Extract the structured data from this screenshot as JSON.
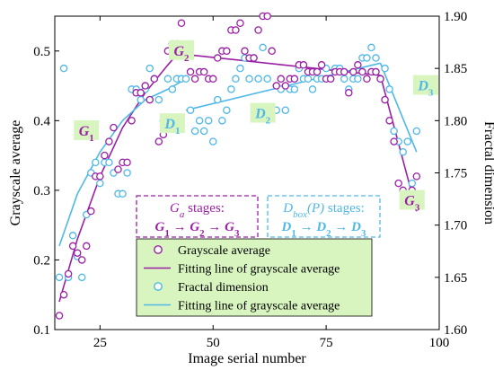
{
  "chart_data": {
    "type": "scatter",
    "xlabel": "Image serial number",
    "ylabel_left": "Grayscale average",
    "ylabel_right": "Fractal dimension",
    "xlim": [
      15,
      100
    ],
    "ylim_left": [
      0.1,
      0.55
    ],
    "ylim_right": [
      1.6,
      1.9
    ],
    "xticks": [
      "25",
      "50",
      "75",
      "100"
    ],
    "yticks_left": [
      "0.1",
      "0.2",
      "0.3",
      "0.4",
      "0.5"
    ],
    "yticks_right": [
      "1.60",
      "1.65",
      "1.70",
      "1.75",
      "1.80",
      "1.85",
      "1.90"
    ],
    "colors": {
      "grayscale": "#9b1fa5",
      "fractal": "#4fb8e8",
      "stage_bg": "#d8f5c0"
    },
    "legend": {
      "position": "bottom-center",
      "entries": [
        "Grayscale average",
        "Fitting line of grayscale average",
        "Fractal dimension",
        "Fitting line of grayscale average"
      ]
    },
    "grayscale_series": {
      "name": "Grayscale average",
      "x": [
        16,
        17,
        18,
        19,
        20,
        21,
        22,
        23,
        24,
        25,
        26,
        27,
        28,
        29,
        30,
        31,
        32,
        33,
        34,
        35,
        36,
        37,
        38,
        39,
        40,
        41,
        42,
        43,
        44,
        45,
        46,
        47,
        48,
        49,
        50,
        51,
        52,
        53,
        54,
        55,
        56,
        57,
        58,
        59,
        60,
        61,
        62,
        63,
        64,
        65,
        66,
        67,
        68,
        69,
        70,
        71,
        72,
        73,
        74,
        75,
        76,
        77,
        78,
        79,
        80,
        81,
        82,
        83,
        84,
        85,
        86,
        87,
        88,
        89,
        90,
        91,
        92,
        93,
        94,
        95
      ],
      "y": [
        0.12,
        0.15,
        0.18,
        0.22,
        0.21,
        0.2,
        0.22,
        0.27,
        0.32,
        0.32,
        0.35,
        0.37,
        0.39,
        0.33,
        0.34,
        0.34,
        0.4,
        0.44,
        0.44,
        0.45,
        0.43,
        0.46,
        0.37,
        0.38,
        0.5,
        0.51,
        0.51,
        0.54,
        0.5,
        0.47,
        0.46,
        0.47,
        0.47,
        0.46,
        0.46,
        0.49,
        0.5,
        0.5,
        0.53,
        0.53,
        0.54,
        0.5,
        0.49,
        0.49,
        0.53,
        0.55,
        0.55,
        0.5,
        0.45,
        0.46,
        0.45,
        0.46,
        0.46,
        0.48,
        0.48,
        0.47,
        0.47,
        0.47,
        0.48,
        0.46,
        0.46,
        0.47,
        0.47,
        0.47,
        0.44,
        0.47,
        0.48,
        0.47,
        0.46,
        0.47,
        0.47,
        0.46,
        0.43,
        0.4,
        0.37,
        0.31,
        0.3,
        0.28,
        0.3,
        0.32
      ]
    },
    "grayscale_fit": {
      "name": "Fitting line of grayscale average",
      "segments": [
        {
          "x": [
            16,
            20,
            25,
            30,
            35,
            40,
            44
          ],
          "y": [
            0.14,
            0.23,
            0.32,
            0.39,
            0.44,
            0.48,
            0.51
          ]
        },
        {
          "x": [
            44,
            87
          ],
          "y": [
            0.495,
            0.465
          ]
        },
        {
          "x": [
            87,
            95
          ],
          "y": [
            0.465,
            0.27
          ]
        }
      ]
    },
    "fractal_series": {
      "name": "Fractal dimension",
      "x": [
        16,
        17,
        18,
        19,
        20,
        21,
        22,
        23,
        24,
        25,
        26,
        27,
        28,
        29,
        30,
        31,
        32,
        33,
        34,
        35,
        36,
        37,
        38,
        39,
        40,
        41,
        42,
        43,
        44,
        45,
        46,
        47,
        48,
        49,
        50,
        51,
        52,
        53,
        54,
        55,
        56,
        57,
        58,
        59,
        60,
        61,
        62,
        63,
        64,
        65,
        66,
        67,
        68,
        69,
        70,
        71,
        72,
        73,
        74,
        75,
        76,
        77,
        78,
        79,
        80,
        81,
        82,
        83,
        84,
        85,
        86,
        87,
        88,
        89,
        90,
        91,
        92,
        93,
        94,
        95
      ],
      "y": [
        1.65,
        1.85,
        1.65,
        1.69,
        1.67,
        1.65,
        1.71,
        1.75,
        1.76,
        1.74,
        1.76,
        1.76,
        1.75,
        1.73,
        1.73,
        1.75,
        1.83,
        1.83,
        1.82,
        1.83,
        1.85,
        1.84,
        1.82,
        1.8,
        1.84,
        1.83,
        1.84,
        1.84,
        1.84,
        1.81,
        1.79,
        1.8,
        1.79,
        1.8,
        1.78,
        1.82,
        1.8,
        1.81,
        1.83,
        1.84,
        1.85,
        1.86,
        1.84,
        1.86,
        1.84,
        1.87,
        1.84,
        1.81,
        1.81,
        1.83,
        1.81,
        1.83,
        1.83,
        1.85,
        1.84,
        1.84,
        1.83,
        1.84,
        1.84,
        1.85,
        1.84,
        1.85,
        1.85,
        1.84,
        1.83,
        1.84,
        1.84,
        1.86,
        1.86,
        1.87,
        1.86,
        1.84,
        1.85,
        1.83,
        1.79,
        1.78,
        1.77,
        1.78,
        1.74,
        1.79
      ]
    },
    "fractal_fit": {
      "name": "Fitting line of grayscale average",
      "segments": [
        {
          "x": [
            16,
            20,
            25,
            30,
            35,
            40,
            44
          ],
          "y": [
            1.68,
            1.73,
            1.77,
            1.8,
            1.82,
            1.83,
            1.84
          ]
        },
        {
          "x": [
            44,
            87
          ],
          "y": [
            1.81,
            1.855
          ]
        },
        {
          "x": [
            87,
            95
          ],
          "y": [
            1.855,
            1.77
          ]
        }
      ]
    },
    "stage_labels": [
      {
        "text": "G1",
        "series": "grayscale",
        "x": 22,
        "y": 0.385
      },
      {
        "text": "G2",
        "series": "grayscale",
        "x": 43,
        "y": 0.5
      },
      {
        "text": "G3",
        "series": "grayscale",
        "x": 94,
        "y": 0.285
      },
      {
        "text": "D1",
        "series": "fractal",
        "x": 41,
        "y": 0.395
      },
      {
        "text": "D2",
        "series": "fractal",
        "x": 61,
        "y": 0.41
      },
      {
        "text": "D3",
        "series": "fractal",
        "x": 97,
        "y": 0.45
      }
    ],
    "annotation_boxes": [
      {
        "line1": "Ga stages:",
        "line2": "G1 → G2 → G3",
        "color": "grayscale"
      },
      {
        "line1": "Dbox(P) stages:",
        "line2": "D1 → D2 → D3",
        "color": "fractal"
      }
    ]
  }
}
